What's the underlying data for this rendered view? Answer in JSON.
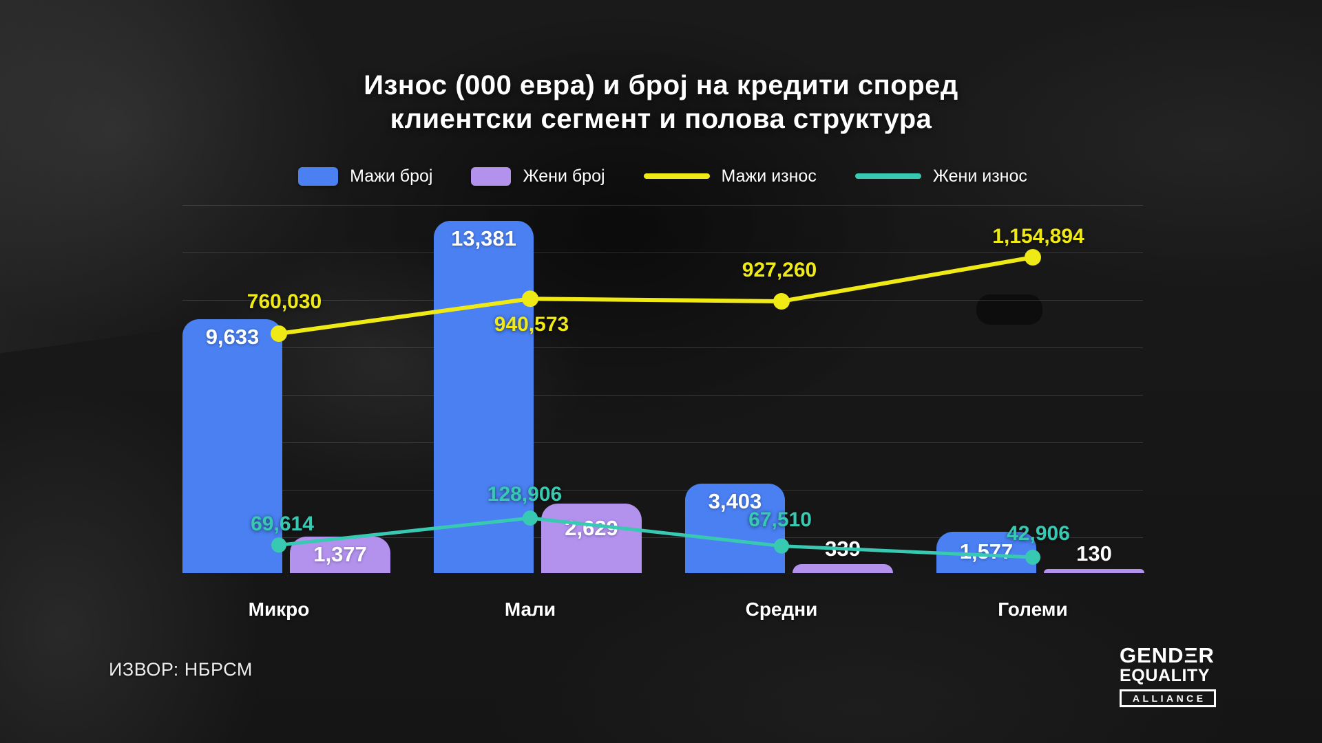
{
  "title": {
    "line1": "Износ (000 евра) и број на кредити според",
    "line2": "клиентски сегмент и полова структура"
  },
  "chart_data": {
    "type": "combo",
    "title": "Износ (000 евра) и број на кредити според клиентски сегмент и полова структура",
    "categories": [
      "Микро",
      "Мали",
      "Средни",
      "Големи"
    ],
    "series": [
      {
        "name": "Мажи број",
        "type": "bar",
        "color": "#4a80f2",
        "values": [
          9633,
          13381,
          3403,
          1577
        ]
      },
      {
        "name": "Жени број",
        "type": "bar",
        "color": "#b392ee",
        "values": [
          1377,
          2629,
          339,
          130
        ]
      },
      {
        "name": "Мажи износ",
        "type": "line",
        "color": "#efe916",
        "values": [
          760030,
          940573,
          927260,
          1154894
        ]
      },
      {
        "name": "Жени износ",
        "type": "line",
        "color": "#38c9b2",
        "values": [
          69614,
          128906,
          67510,
          42906
        ]
      }
    ],
    "legend_position": "top",
    "grid": "horizontal"
  },
  "source": "ИЗВОР: НБРСМ",
  "logo": {
    "line1": "GENDΞR",
    "line2": "EQUALITY",
    "line3": "ALLIANCE"
  }
}
